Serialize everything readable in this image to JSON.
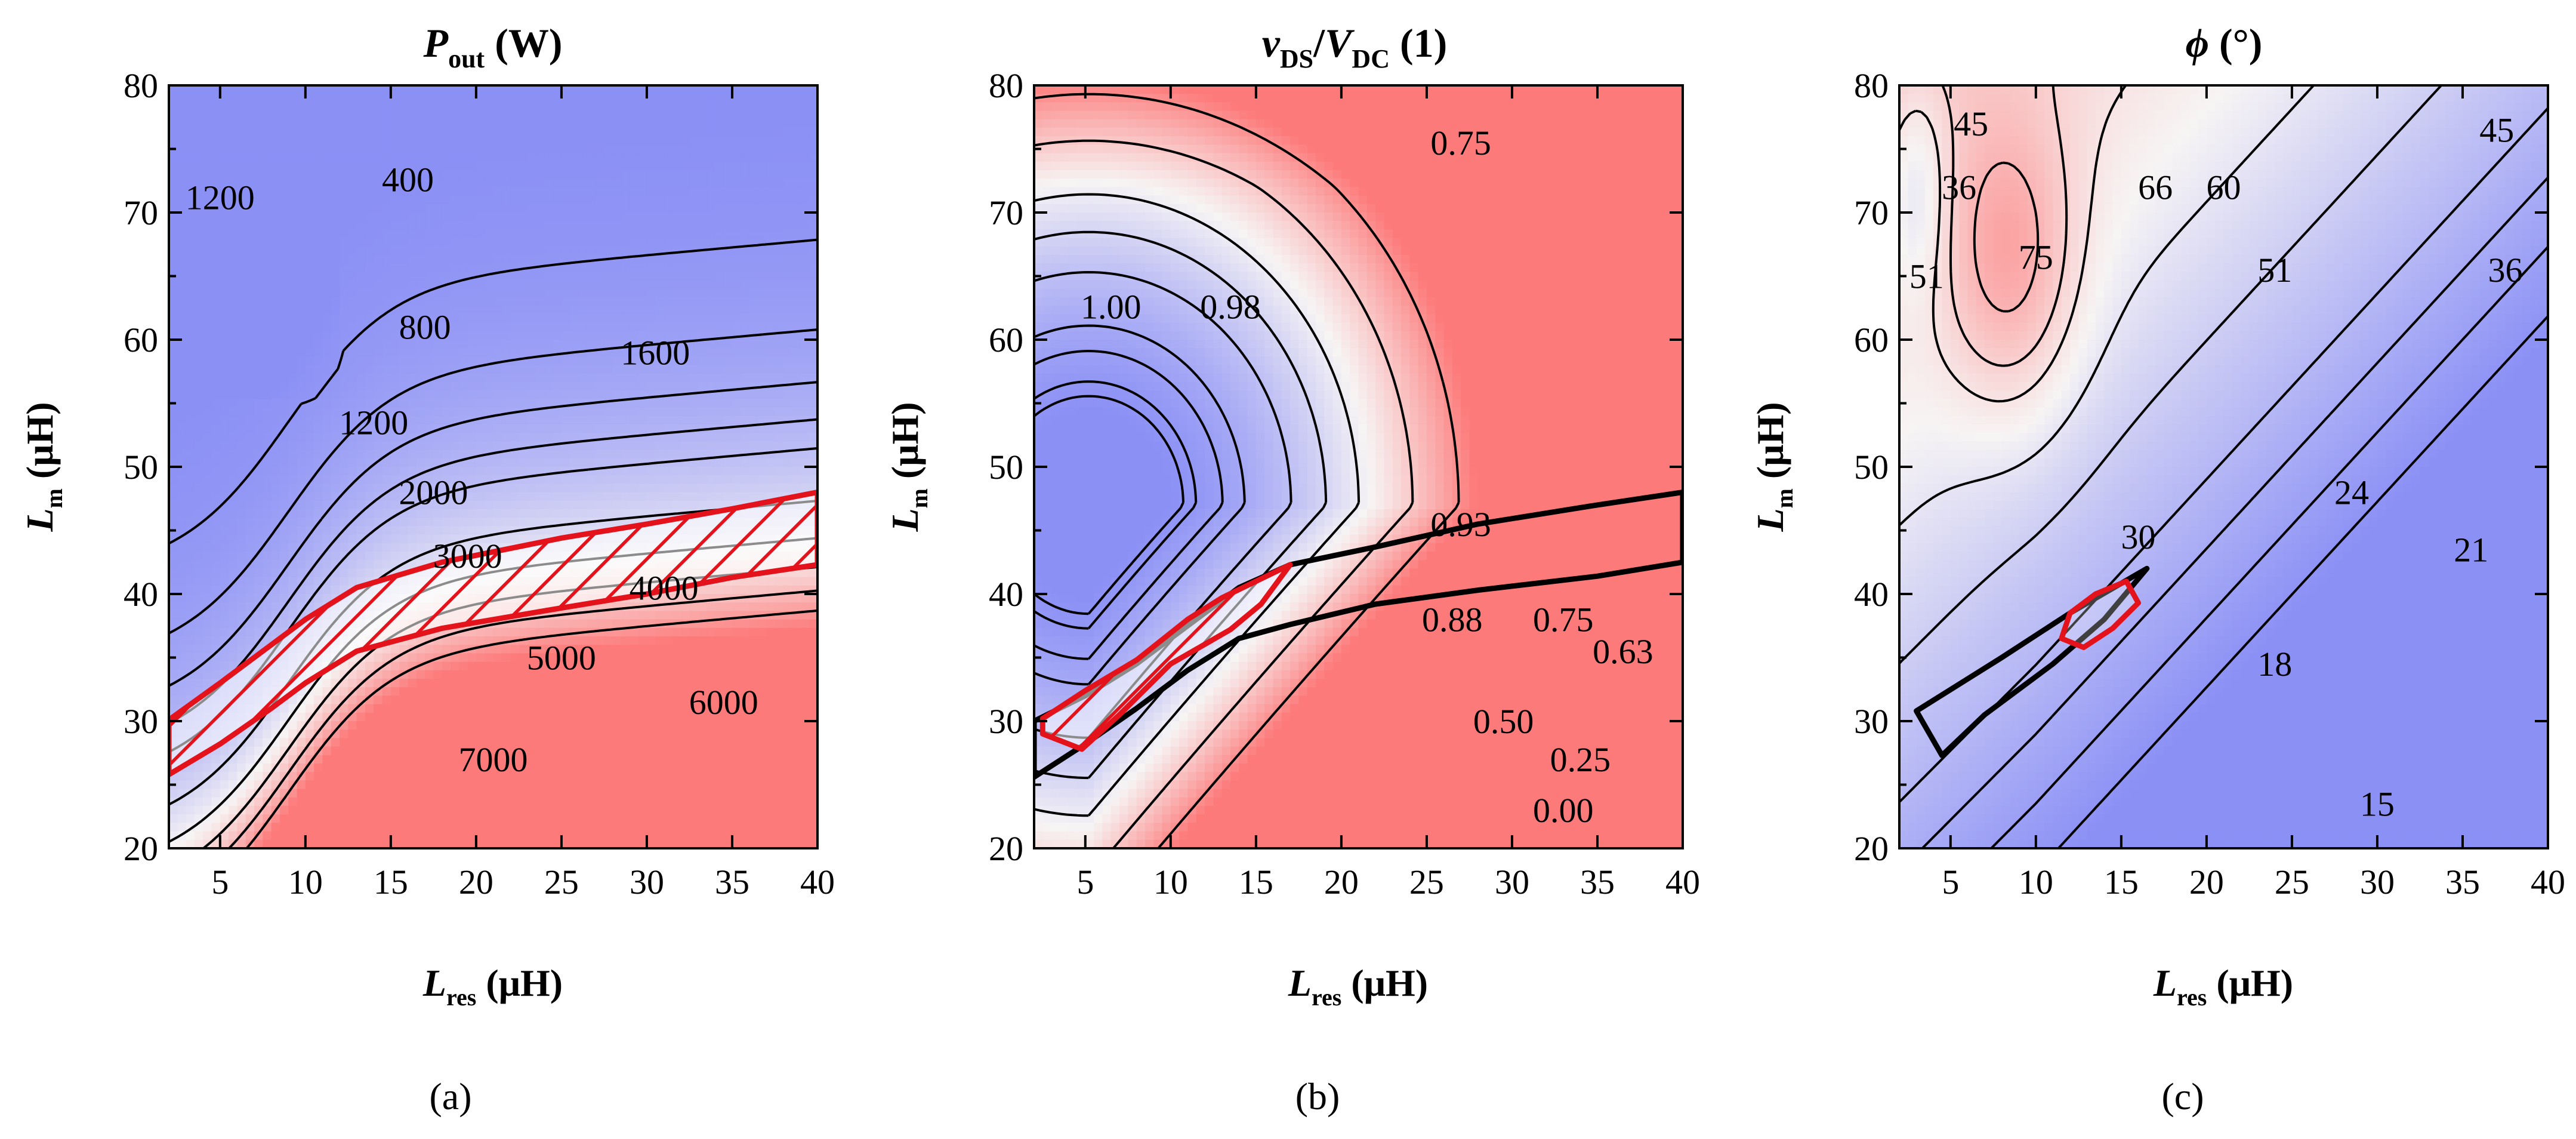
{
  "chart_data": [
    {
      "type": "contour",
      "panel": "a",
      "caption": "(a)",
      "title": {
        "symbol": "P",
        "sub": "out",
        "unit": " (W)"
      },
      "xlabel": {
        "symbol": "L",
        "sub": "res",
        "unit": " (μH)"
      },
      "ylabel": {
        "symbol": "L",
        "sub": "m",
        "unit": " (μH)"
      },
      "xlim": [
        2,
        40
      ],
      "ylim": [
        20,
        80
      ],
      "xticks": [
        5,
        10,
        15,
        20,
        25,
        30,
        35,
        40
      ],
      "yticks": [
        20,
        30,
        40,
        50,
        60,
        70,
        80
      ],
      "colors": {
        "low": "#8b90f5",
        "mid": "#f7f4f4",
        "high": "#fd7a7a"
      },
      "field": {
        "type": "power",
        "Lm0": [
          8.6,
          9.4,
          12.8
        ],
        "s": 10.7,
        "amp": -1.4
      },
      "levels": [
        {
          "value": 400,
          "label": "400",
          "label_at": [
            16.0,
            72.6
          ]
        },
        {
          "value": 800,
          "label": "800",
          "label_at": [
            17.0,
            61.0
          ]
        },
        {
          "value": 1200,
          "label": "1200",
          "label_at": [
            14.0,
            53.5
          ]
        },
        {
          "value": 1600,
          "label": "1600",
          "label_at": [
            30.5,
            59.0
          ]
        },
        {
          "value": 2000,
          "label": "2000",
          "label_at": [
            17.5,
            48.0
          ]
        },
        {
          "value": 3000,
          "label": "3000",
          "label_at": [
            19.5,
            43.0
          ]
        },
        {
          "value": 4000,
          "label": "4000",
          "label_at": [
            31.0,
            40.5
          ]
        },
        {
          "value": 5000,
          "label": "5000",
          "label_at": [
            25.0,
            35.0
          ]
        },
        {
          "value": 6000,
          "label": "6000",
          "label_at": [
            34.5,
            31.5
          ]
        },
        {
          "value": 7000,
          "label": "7000",
          "label_at": [
            21.0,
            27.0
          ]
        }
      ],
      "extra_labels": [
        {
          "text": "1200",
          "at": [
            5.0,
            71.2
          ]
        }
      ],
      "black_region": [],
      "red_region": [
        [
          2,
          30.1
        ],
        [
          5,
          33
        ],
        [
          8,
          36
        ],
        [
          10,
          38
        ],
        [
          13,
          40.5
        ],
        [
          18,
          42.5
        ],
        [
          25,
          44.4
        ],
        [
          30,
          45.5
        ],
        [
          35,
          46.7
        ],
        [
          40,
          48
        ],
        [
          40,
          42.3
        ],
        [
          35,
          41.3
        ],
        [
          30,
          40
        ],
        [
          25,
          38.9
        ],
        [
          18,
          37.3
        ],
        [
          13,
          35.5
        ],
        [
          10,
          33
        ],
        [
          8,
          31
        ],
        [
          5,
          28.2
        ],
        [
          2,
          25.8
        ]
      ],
      "red_hatched": true
    },
    {
      "type": "contour",
      "panel": "b",
      "caption": "(b)",
      "title": {
        "symbol": "v",
        "sub": "DS",
        "sep": "/",
        "symbol2": "V",
        "sub2": "DC",
        "unit": " (1)"
      },
      "xlabel": {
        "symbol": "L",
        "sub": "res",
        "unit": " (μH)"
      },
      "ylabel": {
        "symbol": "L",
        "sub": "m",
        "unit": " (μH)"
      },
      "xlim": [
        2,
        40
      ],
      "ylim": [
        20,
        80
      ],
      "xticks": [
        5,
        10,
        15,
        20,
        25,
        30,
        35,
        40
      ],
      "yticks": [
        20,
        30,
        40,
        50,
        60,
        70,
        80
      ],
      "colors": {
        "low": "#8b90f5",
        "mid": "#f7f4f4",
        "high": "#fd7a7a"
      },
      "field": {
        "type": "vds",
        "x0": 5.5,
        "y0": 47,
        "sx": 17,
        "sy": 24,
        "peak": 1.08,
        "floor": -0.45,
        "ax": 0.00055,
        "ay": 0.0
      },
      "levels": [
        {
          "value": 1.0,
          "label": "1.00",
          "label_at": [
            6.5,
            62.6
          ]
        },
        {
          "value": 0.98,
          "label": "0.98",
          "label_at": [
            13.5,
            62.6
          ]
        },
        {
          "value": 0.93,
          "label": "0.93",
          "label_at": [
            27.0,
            45.5
          ]
        },
        {
          "value": 0.88,
          "label": "0.88",
          "label_at": [
            26.5,
            38.0
          ]
        },
        {
          "value": 0.75,
          "label": "0.75",
          "label_at": [
            27.0,
            75.5
          ]
        },
        {
          "value": 0.63,
          "label": "0.63",
          "label_at": [
            36.5,
            35.5
          ]
        },
        {
          "value": 0.5,
          "label": "0.50",
          "label_at": [
            29.5,
            30.0
          ]
        },
        {
          "value": 0.25,
          "label": "0.25",
          "label_at": [
            34.0,
            27.0
          ]
        },
        {
          "value": 0.0,
          "label": "0.00",
          "label_at": [
            33.0,
            23.0
          ]
        }
      ],
      "extra_labels": [
        {
          "text": "0.75",
          "at": [
            33.0,
            38.0
          ]
        }
      ],
      "black_region": [
        [
          2,
          30
        ],
        [
          5,
          32
        ],
        [
          8,
          34.5
        ],
        [
          11,
          37.5
        ],
        [
          14,
          40.5
        ],
        [
          17,
          42.3
        ],
        [
          22,
          43.7
        ],
        [
          28,
          45.5
        ],
        [
          35,
          47
        ],
        [
          40,
          48
        ],
        [
          40,
          42.5
        ],
        [
          35,
          41.4
        ],
        [
          28,
          40.3
        ],
        [
          22,
          39.2
        ],
        [
          17,
          37.6
        ],
        [
          14,
          36.5
        ],
        [
          11,
          34
        ],
        [
          8,
          31
        ],
        [
          5,
          28.2
        ],
        [
          2,
          25.6
        ]
      ],
      "red_region": [
        [
          2.5,
          30.2
        ],
        [
          5,
          32.4
        ],
        [
          8,
          34.8
        ],
        [
          11,
          38
        ],
        [
          13,
          39.7
        ],
        [
          17,
          42.3
        ],
        [
          15.3,
          39.2
        ],
        [
          13.5,
          37.2
        ],
        [
          10,
          34.5
        ],
        [
          7,
          30.5
        ],
        [
          4.8,
          27.8
        ],
        [
          2.5,
          29
        ]
      ],
      "red_hatched": true
    },
    {
      "type": "contour",
      "panel": "c",
      "caption": "(c)",
      "title": {
        "symbol": "ϕ",
        "sub": "",
        "unit": " (°)"
      },
      "xlabel": {
        "symbol": "L",
        "sub": "res",
        "unit": " (μH)"
      },
      "ylabel": {
        "symbol": "L",
        "sub": "m",
        "unit": " (μH)"
      },
      "xlim": [
        2,
        40
      ],
      "ylim": [
        20,
        80
      ],
      "xticks": [
        5,
        10,
        15,
        20,
        25,
        30,
        35,
        40
      ],
      "yticks": [
        20,
        30,
        40,
        50,
        60,
        70,
        80
      ],
      "colors": {
        "low": "#8b90f5",
        "mid": "#f7f4f4",
        "high": "#fd7a7a"
      },
      "field": {
        "type": "phase"
      },
      "levels": [
        {
          "value": 75,
          "label": "75",
          "label_at": [
            10.0,
            66.5
          ]
        },
        {
          "value": 66,
          "label": "66",
          "label_at": [
            17.0,
            72.0
          ]
        },
        {
          "value": 60,
          "label": "60",
          "label_at": [
            21.0,
            72.0
          ]
        },
        {
          "value": 51,
          "label": "51",
          "label_at": [
            24.0,
            65.5
          ]
        },
        {
          "value": 45,
          "label": "45",
          "label_at": [
            37.0,
            76.5
          ]
        },
        {
          "value": 36,
          "label": "36",
          "label_at": [
            37.5,
            65.5
          ]
        },
        {
          "value": 30,
          "label": "30",
          "label_at": [
            16.0,
            44.5
          ]
        },
        {
          "value": 24,
          "label": "24",
          "label_at": [
            28.5,
            48.0
          ]
        },
        {
          "value": 21,
          "label": "21",
          "label_at": [
            35.5,
            43.5
          ]
        },
        {
          "value": 18,
          "label": "18",
          "label_at": [
            24.0,
            34.5
          ]
        },
        {
          "value": 15,
          "label": "15",
          "label_at": [
            30.0,
            23.5
          ]
        }
      ],
      "extra_labels": [
        {
          "text": "45",
          "at": [
            6.2,
            77.0
          ]
        },
        {
          "text": "36",
          "at": [
            5.5,
            72.0
          ]
        },
        {
          "text": "51",
          "at": [
            3.6,
            65.0
          ]
        }
      ],
      "black_region": [
        [
          3,
          30.8
        ],
        [
          8,
          35
        ],
        [
          12,
          38.5
        ],
        [
          16.5,
          42
        ],
        [
          14,
          38
        ],
        [
          11,
          34.5
        ],
        [
          7,
          30.5
        ],
        [
          4.5,
          27.3
        ]
      ],
      "red_region": [
        [
          11.5,
          36.5
        ],
        [
          12,
          38.5
        ],
        [
          13.5,
          40
        ],
        [
          15.3,
          41
        ],
        [
          16,
          39.3
        ],
        [
          14.5,
          37.3
        ],
        [
          12.8,
          35.8
        ]
      ],
      "red_hatched": false
    }
  ]
}
